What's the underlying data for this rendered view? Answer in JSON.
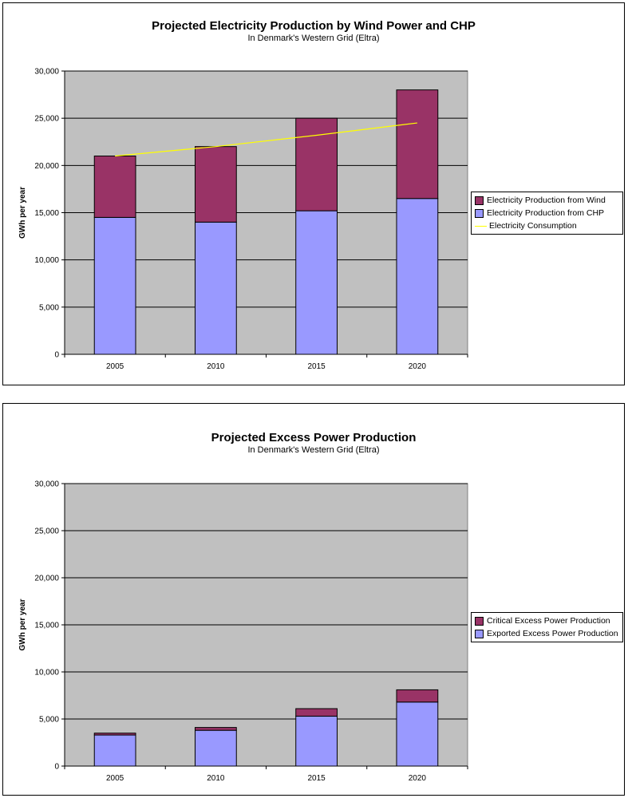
{
  "chart_data": [
    {
      "type": "bar",
      "stacked": true,
      "title": "Projected Electricity Production by Wind Power and CHP",
      "subtitle": "In Denmark's Western Grid (Eltra)",
      "xlabel": "",
      "ylabel": "GWh per year",
      "ylim": [
        0,
        30000
      ],
      "yticks": [
        "0",
        "5,000",
        "10,000",
        "15,000",
        "20,000",
        "25,000",
        "30,000"
      ],
      "ytick_values": [
        0,
        5000,
        10000,
        15000,
        20000,
        25000,
        30000
      ],
      "categories": [
        "2005",
        "2010",
        "2015",
        "2020"
      ],
      "series": [
        {
          "name": "Electricity Production from CHP",
          "values": [
            14500,
            14000,
            15200,
            16500
          ],
          "color": "#9999ff"
        },
        {
          "name": "Electricity Production from Wind",
          "values": [
            6500,
            8000,
            9800,
            11500
          ],
          "color": "#993366"
        }
      ],
      "line_series": [
        {
          "name": "Electricity Consumption",
          "values": [
            21000,
            22000,
            23200,
            24500
          ],
          "color": "#ffff00"
        }
      ],
      "legend": [
        "Electricity Production from Wind",
        "Electricity Production from CHP",
        "Electricity Consumption"
      ],
      "legend_position": "right",
      "plot_background": "#c0c0c0",
      "grid": true
    },
    {
      "type": "bar",
      "stacked": true,
      "title": "Projected Excess Power Production",
      "subtitle": "In Denmark's Western Grid (Eltra)",
      "xlabel": "",
      "ylabel": "GWh per year",
      "ylim": [
        0,
        30000
      ],
      "yticks": [
        "0",
        "5,000",
        "10,000",
        "15,000",
        "20,000",
        "25,000",
        "30,000"
      ],
      "ytick_values": [
        0,
        5000,
        10000,
        15000,
        20000,
        25000,
        30000
      ],
      "categories": [
        "2005",
        "2010",
        "2015",
        "2020"
      ],
      "series": [
        {
          "name": "Exported Excess Power Production",
          "values": [
            3300,
            3800,
            5300,
            6800
          ],
          "color": "#9999ff"
        },
        {
          "name": "Critical Excess Power Production",
          "values": [
            200,
            300,
            800,
            1300
          ],
          "color": "#993366"
        }
      ],
      "legend": [
        "Critical Excess Power Production",
        "Exported Excess Power Production"
      ],
      "legend_position": "right",
      "plot_background": "#c0c0c0",
      "grid": true
    }
  ]
}
